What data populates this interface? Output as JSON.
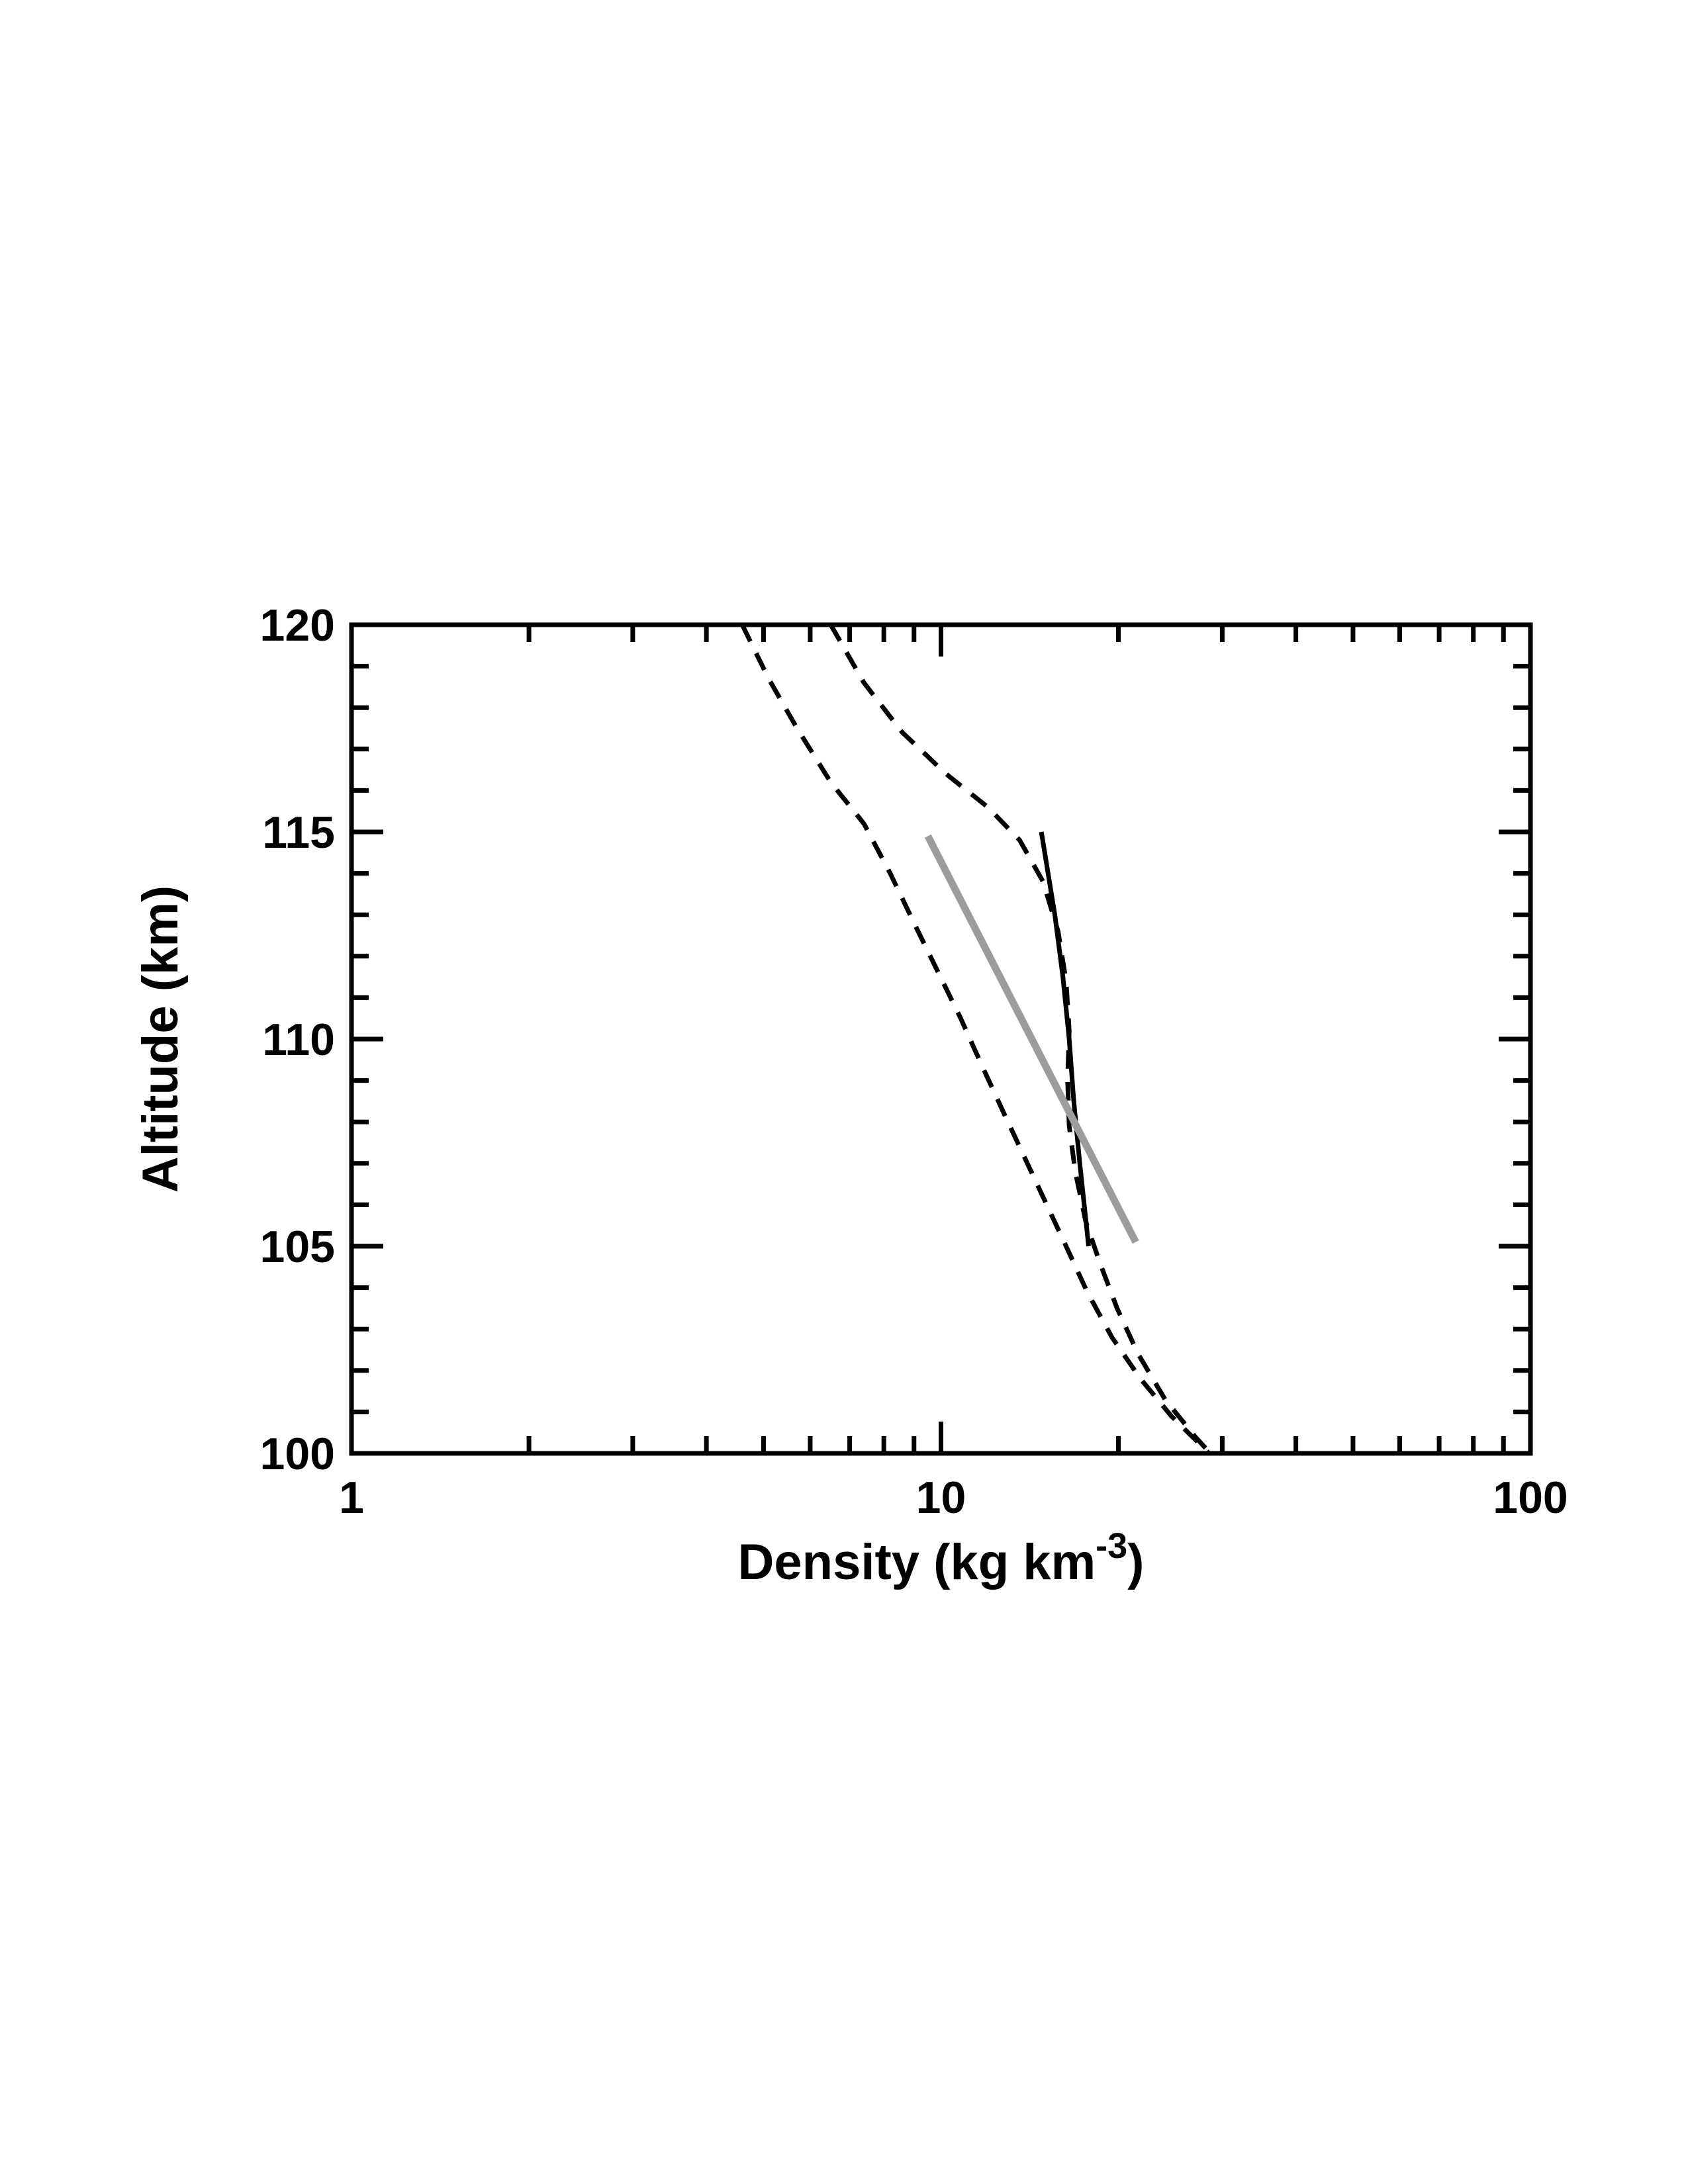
{
  "figure": {
    "background_color": "#ffffff",
    "frame_color": "#000000"
  },
  "chart_data": {
    "type": "line",
    "title": "",
    "xlabel": "Density (kg km-3)",
    "xlabel_parts": [
      "Density (kg km",
      "-3",
      ")"
    ],
    "ylabel": "Altitude (km)",
    "x_scale": "log",
    "y_scale": "linear",
    "xlim": [
      1,
      100
    ],
    "ylim": [
      100,
      120
    ],
    "grid": false,
    "legend": "none",
    "x_major_ticks": [
      1,
      10,
      100
    ],
    "x_major_tick_labels": [
      "1",
      "10",
      "100"
    ],
    "x_minor_ticks": [
      2,
      3,
      4,
      5,
      6,
      7,
      8,
      9,
      20,
      30,
      40,
      50,
      60,
      70,
      80,
      90
    ],
    "y_major_ticks": [
      100,
      105,
      110,
      115,
      120
    ],
    "y_major_tick_labels": [
      "100",
      "105",
      "110",
      "115",
      "120"
    ],
    "y_minor_ticks": [
      101,
      102,
      103,
      104,
      106,
      107,
      108,
      109,
      111,
      112,
      113,
      114,
      116,
      117,
      118,
      119
    ],
    "series": [
      {
        "name": "dashed-model-profile-1",
        "style": "dashed",
        "color": "#000000",
        "points": [
          [
            4.6,
            120.0
          ],
          [
            5.1,
            118.7
          ],
          [
            5.7,
            117.5
          ],
          [
            6.5,
            116.2
          ],
          [
            7.4,
            115.2
          ],
          [
            8.2,
            114.0
          ],
          [
            9.0,
            112.8
          ],
          [
            9.9,
            111.6
          ],
          [
            10.8,
            110.5
          ],
          [
            11.7,
            109.4
          ],
          [
            12.7,
            108.3
          ],
          [
            13.8,
            107.2
          ],
          [
            15.0,
            106.1
          ],
          [
            16.3,
            105.0
          ],
          [
            17.7,
            103.9
          ],
          [
            19.5,
            102.8
          ],
          [
            21.8,
            101.8
          ],
          [
            24.6,
            100.9
          ],
          [
            28.5,
            100.0
          ],
          [
            30.0,
            99.6
          ]
        ]
      },
      {
        "name": "dashed-model-profile-2",
        "style": "dashed",
        "color": "#000000",
        "points": [
          [
            6.5,
            120.0
          ],
          [
            7.4,
            118.6
          ],
          [
            8.6,
            117.4
          ],
          [
            10.2,
            116.4
          ],
          [
            12.0,
            115.6
          ],
          [
            13.6,
            114.8
          ],
          [
            14.9,
            113.8
          ],
          [
            15.8,
            112.6
          ],
          [
            16.3,
            111.4
          ],
          [
            16.5,
            110.2
          ],
          [
            16.4,
            109.0
          ],
          [
            16.5,
            107.9
          ],
          [
            16.9,
            106.8
          ],
          [
            17.6,
            105.6
          ],
          [
            18.6,
            104.6
          ],
          [
            19.9,
            103.5
          ],
          [
            21.6,
            102.4
          ],
          [
            24.0,
            101.3
          ],
          [
            27.0,
            100.4
          ],
          [
            29.5,
            99.8
          ]
        ]
      },
      {
        "name": "solid-measured-profile",
        "style": "solid",
        "color": "#000000",
        "points": [
          [
            14.8,
            115.0
          ],
          [
            15.6,
            113.0
          ],
          [
            16.1,
            111.5
          ],
          [
            16.5,
            110.0
          ],
          [
            16.8,
            108.5
          ],
          [
            17.2,
            107.0
          ],
          [
            17.5,
            106.0
          ],
          [
            17.8,
            105.0
          ]
        ]
      },
      {
        "name": "gray-fit-line",
        "style": "solid",
        "color": "#9c9c9c",
        "points": [
          [
            9.5,
            114.9
          ],
          [
            21.4,
            105.1
          ]
        ]
      }
    ]
  }
}
